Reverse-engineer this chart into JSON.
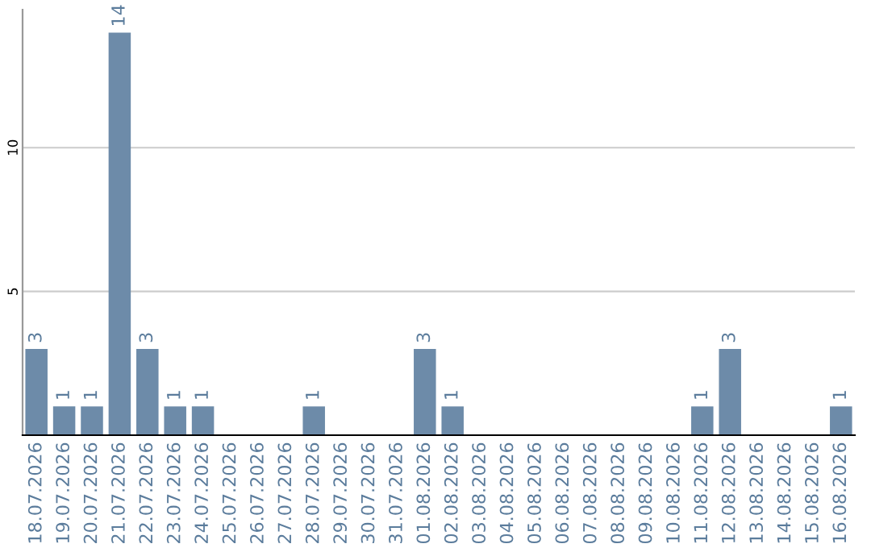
{
  "chart_data": {
    "type": "bar",
    "categories": [
      "18.07.2026",
      "19.07.2026",
      "20.07.2026",
      "21.07.2026",
      "22.07.2026",
      "23.07.2026",
      "24.07.2026",
      "25.07.2026",
      "26.07.2026",
      "27.07.2026",
      "28.07.2026",
      "29.07.2026",
      "30.07.2026",
      "31.07.2026",
      "01.08.2026",
      "02.08.2026",
      "03.08.2026",
      "04.08.2026",
      "05.08.2026",
      "06.08.2026",
      "07.08.2026",
      "08.08.2026",
      "09.08.2026",
      "10.08.2026",
      "11.08.2026",
      "12.08.2026",
      "13.08.2026",
      "14.08.2026",
      "15.08.2026",
      "16.08.2026"
    ],
    "values": [
      3,
      1,
      1,
      14,
      3,
      1,
      1,
      0,
      0,
      0,
      1,
      0,
      0,
      0,
      3,
      1,
      0,
      0,
      0,
      0,
      0,
      0,
      0,
      0,
      1,
      3,
      0,
      0,
      0,
      1
    ],
    "value_labels": [
      "3",
      "1",
      "1",
      "14",
      "3",
      "1",
      "1",
      null,
      null,
      null,
      "1",
      null,
      null,
      null,
      "3",
      "1",
      null,
      null,
      null,
      null,
      null,
      null,
      null,
      null,
      "1",
      "3",
      null,
      null,
      null,
      "1"
    ],
    "color": "#6d8ba9",
    "ylim": [
      0,
      14.8
    ],
    "yticks": [
      5,
      10
    ],
    "grid": "y"
  }
}
